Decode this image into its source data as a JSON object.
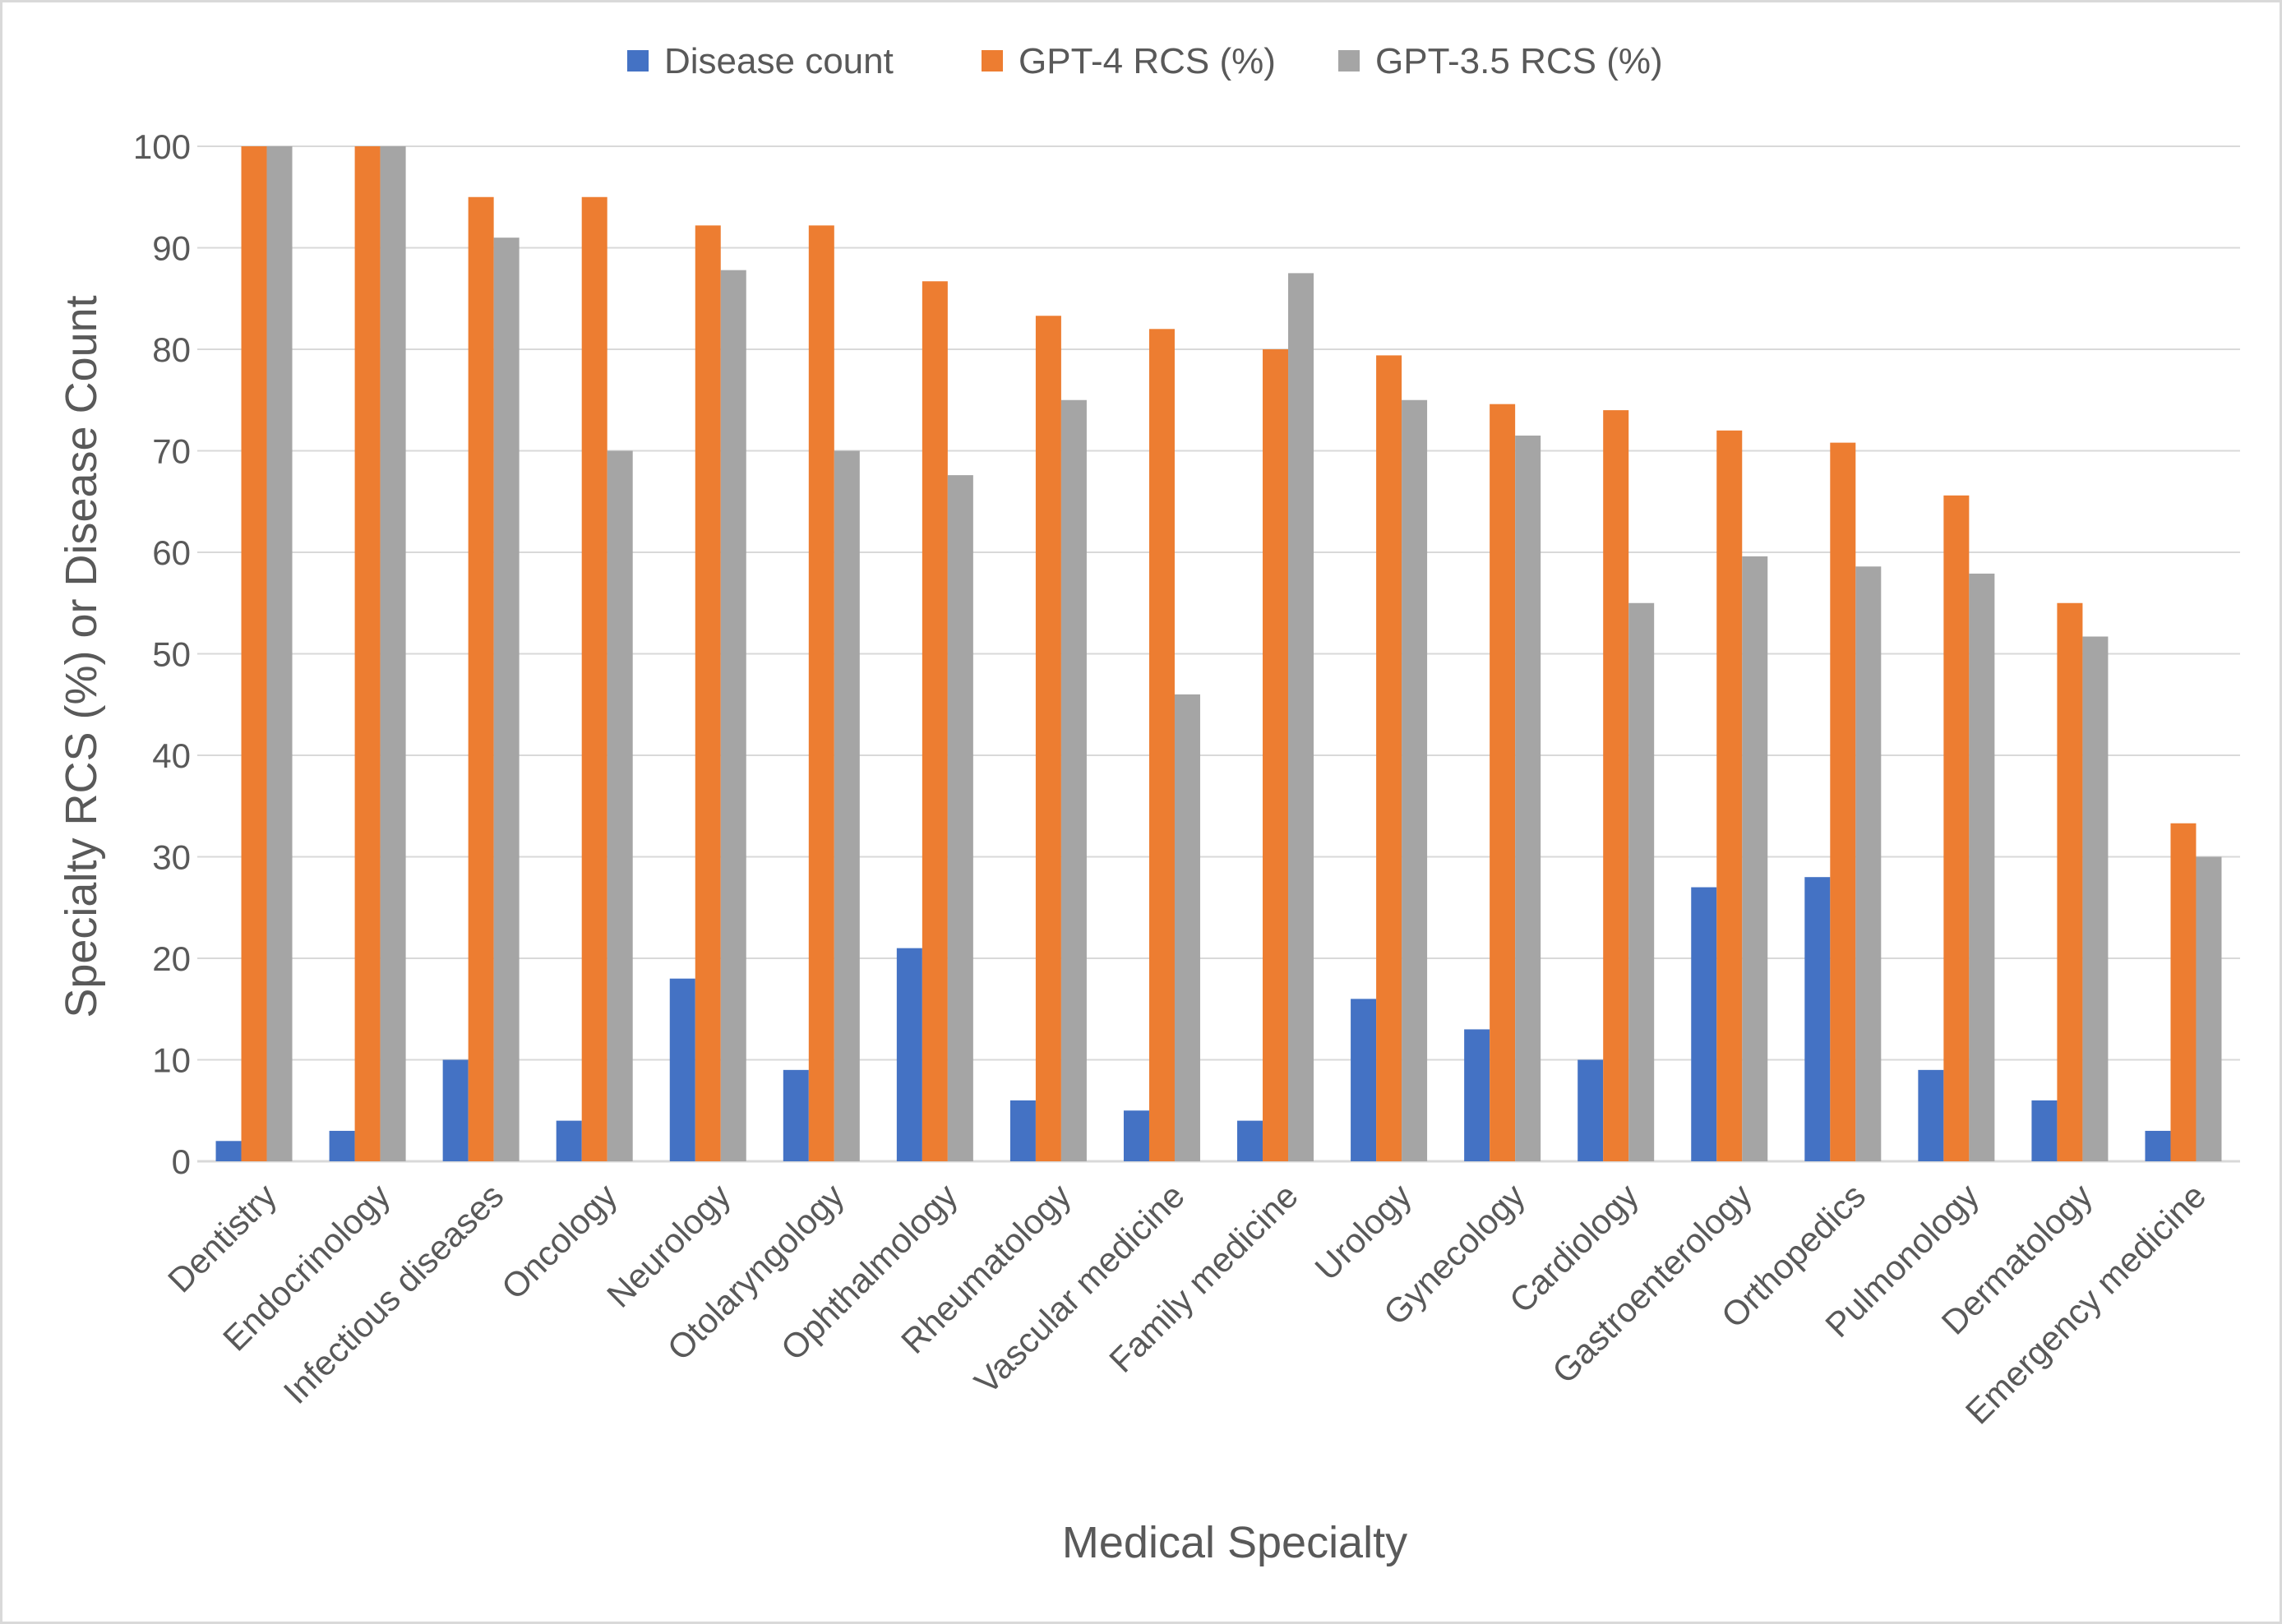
{
  "chart_data": {
    "type": "bar",
    "title": "",
    "xlabel": "Medical Specialty",
    "ylabel": "Specialty RCS (%) or Disease Count",
    "ylim": [
      0,
      100
    ],
    "yticks": [
      0,
      10,
      20,
      30,
      40,
      50,
      60,
      70,
      80,
      90,
      100
    ],
    "grid": true,
    "legend_position": "top-center",
    "categories": [
      "Dentistry",
      "Endocrinology",
      "Infectious diseases",
      "Oncology",
      "Neurology",
      "Otolaryngology",
      "Ophthalmology",
      "Rheumatology",
      "Vascular medicine",
      "Family medicine",
      "Urology",
      "Gynecology",
      "Cardiology",
      "Gastroenterology",
      "Orthopedics",
      "Pulmonology",
      "Dermatology",
      "Emergency medicine"
    ],
    "series": [
      {
        "name": "Disease count",
        "color": "#4472c4",
        "values": [
          2,
          3,
          10,
          4,
          18,
          9,
          21,
          6,
          5,
          4,
          16,
          13,
          10,
          27,
          28,
          9,
          6,
          3
        ]
      },
      {
        "name": "GPT-4 RCS (%)",
        "color": "#ed7d31",
        "values": [
          100,
          100,
          95,
          95,
          92.2,
          92.2,
          86.7,
          83.3,
          82,
          80,
          79.4,
          74.6,
          74,
          72,
          70.8,
          65.6,
          55,
          33.3
        ]
      },
      {
        "name": "GPT-3.5 RCS (%)",
        "color": "#a5a5a5",
        "values": [
          100,
          100,
          91,
          70,
          87.8,
          70,
          67.6,
          75,
          46,
          87.5,
          75,
          71.5,
          55,
          59.6,
          58.6,
          57.9,
          51.7,
          30
        ]
      }
    ]
  }
}
